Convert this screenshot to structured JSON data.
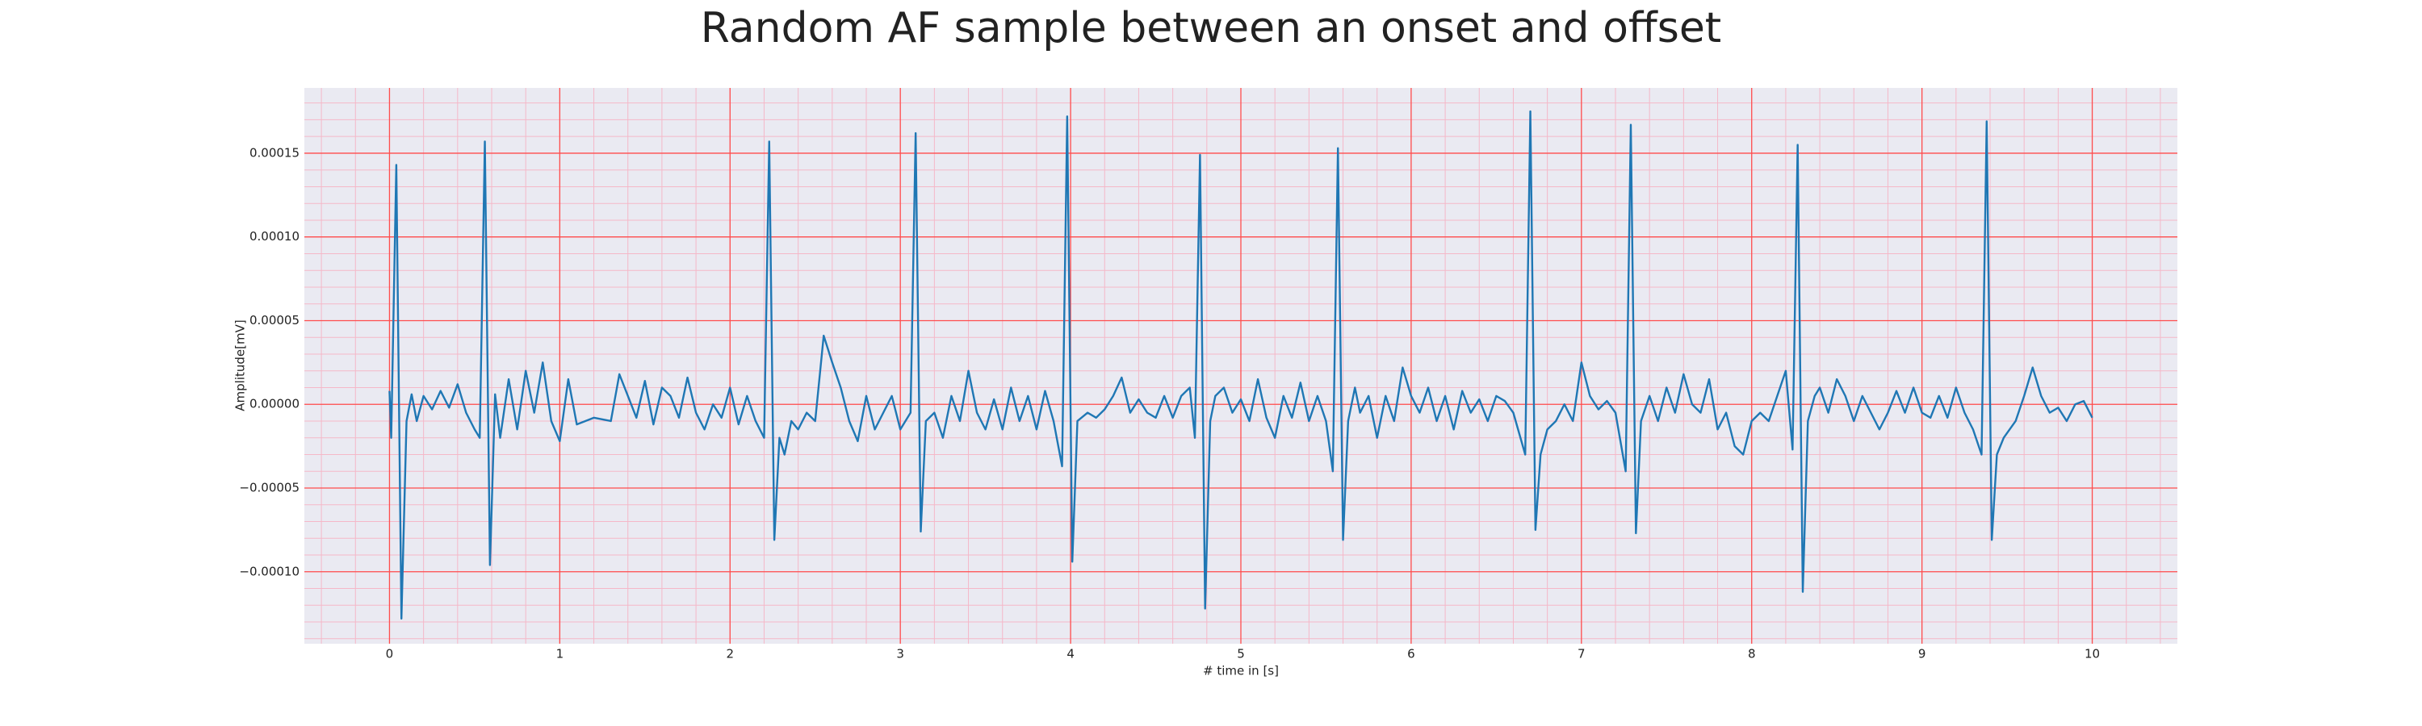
{
  "chart_data": {
    "type": "line",
    "title": "Random AF sample between an onset and offset",
    "xlabel": "# time in [s]",
    "ylabel": "Amplitude[mV]",
    "xlim": [
      -0.5,
      10.5
    ],
    "ylim": [
      -0.000143,
      0.000189
    ],
    "xticks": [
      0,
      1,
      2,
      3,
      4,
      5,
      6,
      7,
      8,
      9,
      10
    ],
    "yticks": [
      {
        "value": -0.0001,
        "label": "−0.00010"
      },
      {
        "value": -5e-05,
        "label": "−0.00005"
      },
      {
        "value": 0,
        "label": "0.00000"
      },
      {
        "value": 5e-05,
        "label": "0.00005"
      },
      {
        "value": 0.0001,
        "label": "0.00010"
      },
      {
        "value": 0.00015,
        "label": "0.00015"
      }
    ],
    "grid": true,
    "minor_grid": true,
    "grid_color": "#ff4d4d",
    "minor_grid_color": "#f5b8c8",
    "background": "#eaeaf2",
    "series": [
      {
        "color": "#1f77b4",
        "x": [
          0.0,
          0.01,
          0.04,
          0.07,
          0.1,
          0.13,
          0.16,
          0.2,
          0.25,
          0.3,
          0.35,
          0.4,
          0.45,
          0.5,
          0.53,
          0.56,
          0.59,
          0.62,
          0.65,
          0.7,
          0.75,
          0.8,
          0.85,
          0.9,
          0.95,
          1.0,
          1.05,
          1.1,
          1.15,
          1.2,
          1.3,
          1.35,
          1.4,
          1.45,
          1.5,
          1.55,
          1.6,
          1.65,
          1.7,
          1.75,
          1.8,
          1.85,
          1.9,
          1.95,
          2.0,
          2.05,
          2.1,
          2.15,
          2.2,
          2.23,
          2.26,
          2.29,
          2.32,
          2.36,
          2.4,
          2.45,
          2.5,
          2.55,
          2.6,
          2.65,
          2.7,
          2.75,
          2.8,
          2.85,
          2.9,
          2.95,
          3.0,
          3.06,
          3.09,
          3.12,
          3.15,
          3.2,
          3.25,
          3.3,
          3.35,
          3.4,
          3.45,
          3.5,
          3.55,
          3.6,
          3.65,
          3.7,
          3.75,
          3.8,
          3.85,
          3.9,
          3.95,
          3.98,
          4.01,
          4.04,
          4.1,
          4.15,
          4.2,
          4.25,
          4.3,
          4.35,
          4.4,
          4.45,
          4.5,
          4.55,
          4.6,
          4.65,
          4.7,
          4.73,
          4.76,
          4.79,
          4.82,
          4.85,
          4.9,
          4.95,
          5.0,
          5.05,
          5.1,
          5.15,
          5.2,
          5.25,
          5.3,
          5.35,
          5.4,
          5.45,
          5.5,
          5.54,
          5.57,
          5.6,
          5.63,
          5.67,
          5.7,
          5.75,
          5.8,
          5.85,
          5.9,
          5.95,
          6.0,
          6.05,
          6.1,
          6.15,
          6.2,
          6.25,
          6.3,
          6.35,
          6.4,
          6.45,
          6.5,
          6.55,
          6.6,
          6.67,
          6.7,
          6.73,
          6.76,
          6.8,
          6.85,
          6.9,
          6.95,
          7.0,
          7.05,
          7.1,
          7.15,
          7.2,
          7.26,
          7.29,
          7.32,
          7.35,
          7.4,
          7.45,
          7.5,
          7.55,
          7.6,
          7.65,
          7.7,
          7.75,
          7.8,
          7.85,
          7.9,
          7.95,
          8.0,
          8.05,
          8.1,
          8.15,
          8.2,
          8.24,
          8.27,
          8.3,
          8.33,
          8.37,
          8.4,
          8.45,
          8.5,
          8.55,
          8.6,
          8.65,
          8.7,
          8.75,
          8.8,
          8.85,
          8.9,
          8.95,
          9.0,
          9.05,
          9.1,
          9.15,
          9.2,
          9.25,
          9.3,
          9.35,
          9.38,
          9.41,
          9.44,
          9.48,
          9.55,
          9.6,
          9.65,
          9.7,
          9.75,
          9.8,
          9.85,
          9.9,
          9.95,
          10.0
        ],
        "values": [
          8e-06,
          -2e-05,
          0.000143,
          -0.000128,
          -1e-05,
          6e-06,
          -1e-05,
          5e-06,
          -3e-06,
          8e-06,
          -2e-06,
          1.2e-05,
          -5e-06,
          -1.5e-05,
          -2e-05,
          0.000157,
          -9.6e-05,
          6e-06,
          -2e-05,
          1.5e-05,
          -1.5e-05,
          2e-05,
          -5e-06,
          2.5e-05,
          -1e-05,
          -2.2e-05,
          1.5e-05,
          -1.2e-05,
          -1e-05,
          -8e-06,
          -1e-05,
          1.8e-05,
          5e-06,
          -8e-06,
          1.4e-05,
          -1.2e-05,
          1e-05,
          5e-06,
          -8e-06,
          1.6e-05,
          -5e-06,
          -1.5e-05,
          0,
          -8e-06,
          1e-05,
          -1.2e-05,
          5e-06,
          -1e-05,
          -2e-05,
          0.000157,
          -8.1e-05,
          -2e-05,
          -3e-05,
          -1e-05,
          -1.5e-05,
          -5e-06,
          -1e-05,
          4.1e-05,
          2.5e-05,
          1e-05,
          -1e-05,
          -2.2e-05,
          5e-06,
          -1.5e-05,
          -5e-06,
          5e-06,
          -1.5e-05,
          -5e-06,
          0.000162,
          -7.6e-05,
          -1e-05,
          -5e-06,
          -2e-05,
          5e-06,
          -1e-05,
          2e-05,
          -5e-06,
          -1.5e-05,
          3e-06,
          -1.5e-05,
          1e-05,
          -1e-05,
          5e-06,
          -1.5e-05,
          8e-06,
          -1e-05,
          -3.7e-05,
          0.000172,
          -9.4e-05,
          -1e-05,
          -5e-06,
          -8e-06,
          -3e-06,
          5e-06,
          1.6e-05,
          -5e-06,
          3e-06,
          -5e-06,
          -8e-06,
          5e-06,
          -8e-06,
          5e-06,
          1e-05,
          -2e-05,
          0.000149,
          -0.000122,
          -1e-05,
          5e-06,
          1e-05,
          -5e-06,
          3e-06,
          -1e-05,
          1.5e-05,
          -8e-06,
          -2e-05,
          5e-06,
          -8e-06,
          1.3e-05,
          -1e-05,
          5e-06,
          -1e-05,
          -4e-05,
          0.000153,
          -8.1e-05,
          -1e-05,
          1e-05,
          -5e-06,
          5e-06,
          -2e-05,
          5e-06,
          -1e-05,
          2.2e-05,
          5e-06,
          -5e-06,
          1e-05,
          -1e-05,
          5e-06,
          -1.5e-05,
          8e-06,
          -5e-06,
          3e-06,
          -1e-05,
          5e-06,
          2e-06,
          -5e-06,
          -3e-05,
          0.000175,
          -7.5e-05,
          -3e-05,
          -1.5e-05,
          -1e-05,
          0,
          -1e-05,
          2.5e-05,
          5e-06,
          -3e-06,
          2e-06,
          -5e-06,
          -4e-05,
          0.000167,
          -7.7e-05,
          -1e-05,
          5e-06,
          -1e-05,
          1e-05,
          -5e-06,
          1.8e-05,
          0,
          -5e-06,
          1.5e-05,
          -1.5e-05,
          -5e-06,
          -2.5e-05,
          -3e-05,
          -1e-05,
          -5e-06,
          -1e-05,
          5e-06,
          2e-05,
          -2.7e-05,
          0.000155,
          -0.000112,
          -1e-05,
          5e-06,
          1e-05,
          -5e-06,
          1.5e-05,
          5e-06,
          -1e-05,
          5e-06,
          -5e-06,
          -1.5e-05,
          -5e-06,
          8e-06,
          -5e-06,
          1e-05,
          -5e-06,
          -8e-06,
          5e-06,
          -8e-06,
          1e-05,
          -5e-06,
          -1.5e-05,
          -3e-05,
          0.000169,
          -8.1e-05,
          -3e-05,
          -2e-05,
          -1e-05,
          5e-06,
          2.2e-05,
          5e-06,
          -5e-06,
          -2e-06,
          -1e-05,
          0,
          2e-06,
          -8e-06
        ]
      }
    ]
  }
}
